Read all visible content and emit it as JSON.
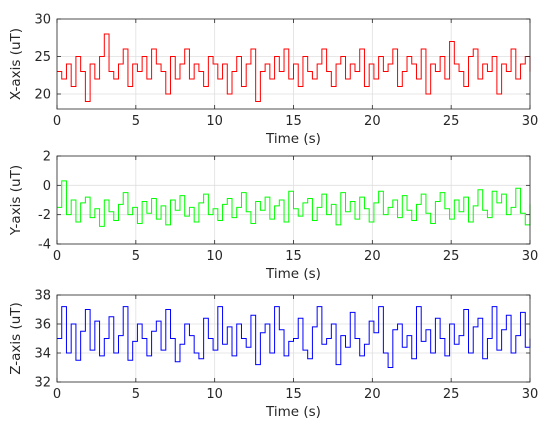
{
  "chart_data": [
    {
      "type": "line",
      "ylabel": "X-axis (uT)",
      "xlabel": "Time (s)",
      "xlim": [
        0,
        30
      ],
      "ylim": [
        18,
        30
      ],
      "xticks": [
        "0",
        "5",
        "10",
        "15",
        "20",
        "25",
        "30"
      ],
      "yticks": [
        "20",
        "25",
        "30"
      ],
      "grid": true,
      "color": "#ff0000",
      "series": [
        {
          "x": [
            0,
            0.3,
            0.6,
            0.9,
            1.2,
            1.5,
            1.8,
            2.1,
            2.4,
            2.7,
            3.0,
            3.3,
            3.6,
            3.9,
            4.2,
            4.5,
            4.8,
            5.1,
            5.4,
            5.7,
            6.0,
            6.3,
            6.6,
            6.9,
            7.2,
            7.5,
            7.8,
            8.1,
            8.4,
            8.7,
            9.0,
            9.3,
            9.6,
            9.9,
            10.2,
            10.5,
            10.8,
            11.1,
            11.4,
            11.7,
            12.0,
            12.3,
            12.6,
            12.9,
            13.2,
            13.5,
            13.8,
            14.1,
            14.4,
            14.7,
            15.0,
            15.3,
            15.6,
            15.9,
            16.2,
            16.5,
            16.8,
            17.1,
            17.4,
            17.7,
            18.0,
            18.3,
            18.6,
            18.9,
            19.2,
            19.5,
            19.8,
            20.1,
            20.4,
            20.7,
            21.0,
            21.3,
            21.6,
            21.9,
            22.2,
            22.5,
            22.8,
            23.1,
            23.4,
            23.7,
            24.0,
            24.3,
            24.6,
            24.9,
            25.2,
            25.5,
            25.8,
            26.1,
            26.4,
            26.7,
            27.0,
            27.3,
            27.6,
            27.9,
            28.2,
            28.5,
            28.8,
            29.1,
            29.4,
            29.7,
            30.0
          ],
          "y": [
            23,
            22,
            24,
            21,
            25,
            23,
            19,
            24,
            22,
            25,
            28,
            23,
            22,
            24,
            26,
            21,
            24,
            23,
            25,
            22,
            26,
            24,
            23,
            20,
            25,
            22,
            24,
            26,
            22,
            24,
            23,
            21,
            25,
            24,
            22,
            24,
            20,
            23,
            25,
            21,
            24,
            26,
            19,
            23,
            24,
            22,
            25,
            23,
            26,
            22,
            24,
            21,
            25,
            23,
            22,
            24,
            26,
            23,
            21,
            24,
            25,
            22,
            24,
            23,
            26,
            21,
            24,
            22,
            25,
            23,
            24,
            26,
            21,
            23,
            25,
            24,
            22,
            26,
            20,
            24,
            23,
            25,
            22,
            27,
            24,
            23,
            21,
            25,
            26,
            22,
            24,
            23,
            25,
            20,
            24,
            23,
            26,
            22,
            24,
            25,
            23
          ]
        }
      ]
    },
    {
      "type": "line",
      "ylabel": "Y-axis (uT)",
      "xlabel": "Time (s)",
      "xlim": [
        0,
        30
      ],
      "ylim": [
        -4,
        2
      ],
      "xticks": [
        "0",
        "5",
        "10",
        "15",
        "20",
        "25",
        "30"
      ],
      "yticks": [
        "-4",
        "-2",
        "0",
        "2"
      ],
      "grid": true,
      "color": "#00ff00",
      "series": [
        {
          "x": [
            0,
            0.3,
            0.6,
            0.9,
            1.2,
            1.5,
            1.8,
            2.1,
            2.4,
            2.7,
            3.0,
            3.3,
            3.6,
            3.9,
            4.2,
            4.5,
            4.8,
            5.1,
            5.4,
            5.7,
            6.0,
            6.3,
            6.6,
            6.9,
            7.2,
            7.5,
            7.8,
            8.1,
            8.4,
            8.7,
            9.0,
            9.3,
            9.6,
            9.9,
            10.2,
            10.5,
            10.8,
            11.1,
            11.4,
            11.7,
            12.0,
            12.3,
            12.6,
            12.9,
            13.2,
            13.5,
            13.8,
            14.1,
            14.4,
            14.7,
            15.0,
            15.3,
            15.6,
            15.9,
            16.2,
            16.5,
            16.8,
            17.1,
            17.4,
            17.7,
            18.0,
            18.3,
            18.6,
            18.9,
            19.2,
            19.5,
            19.8,
            20.1,
            20.4,
            20.7,
            21.0,
            21.3,
            21.6,
            21.9,
            22.2,
            22.5,
            22.8,
            23.1,
            23.4,
            23.7,
            24.0,
            24.3,
            24.6,
            24.9,
            25.2,
            25.5,
            25.8,
            26.1,
            26.4,
            26.7,
            27.0,
            27.3,
            27.6,
            27.9,
            28.2,
            28.5,
            28.8,
            29.1,
            29.4,
            29.7,
            30.0
          ],
          "y": [
            -1.5,
            0.3,
            -2,
            -1,
            -2.5,
            -1.2,
            -0.8,
            -2.2,
            -1.6,
            -2.8,
            -1,
            -1.8,
            -2.4,
            -1.3,
            -0.5,
            -2,
            -1.5,
            -2.6,
            -1.1,
            -1.9,
            -0.9,
            -2.3,
            -1.4,
            -2.7,
            -1,
            -1.7,
            -0.7,
            -2.1,
            -1.5,
            -2.5,
            -1.2,
            -0.6,
            -2,
            -1.6,
            -2.4,
            -1.3,
            -0.9,
            -2.2,
            -1.5,
            -0.5,
            -1.8,
            -2.6,
            -1.1,
            -1.7,
            -0.8,
            -2.3,
            -1.4,
            -1,
            -2.5,
            -0.4,
            -1.6,
            -2.1,
            -1.2,
            -0.9,
            -2.4,
            -1.5,
            -0.6,
            -2,
            -1.3,
            -2.7,
            -0.5,
            -1.8,
            -1.1,
            -2.3,
            -0.8,
            -1.6,
            -2.5,
            -1.2,
            -0.4,
            -2,
            -1.5,
            -1,
            -2.2,
            -0.7,
            -1.7,
            -2.4,
            -1.3,
            -0.6,
            -1.9,
            -2.6,
            -1.1,
            -0.5,
            -1.6,
            -2.3,
            -1,
            -1.8,
            -0.8,
            -2.5,
            -1.4,
            -0.3,
            -1.7,
            -2.2,
            -0.4,
            -1.2,
            -0.6,
            -2,
            -1.5,
            -0.2,
            -1.9,
            -2.7,
            -1.3
          ]
        }
      ]
    },
    {
      "type": "line",
      "ylabel": "Z-axis (uT)",
      "xlabel": "Time (s)",
      "xlim": [
        0,
        30
      ],
      "ylim": [
        32,
        38
      ],
      "xticks": [
        "0",
        "5",
        "10",
        "15",
        "20",
        "25",
        "30"
      ],
      "yticks": [
        "32",
        "34",
        "36",
        "38"
      ],
      "grid": true,
      "color": "#0000ff",
      "series": [
        {
          "x": [
            0,
            0.3,
            0.6,
            0.9,
            1.2,
            1.5,
            1.8,
            2.1,
            2.4,
            2.7,
            3.0,
            3.3,
            3.6,
            3.9,
            4.2,
            4.5,
            4.8,
            5.1,
            5.4,
            5.7,
            6.0,
            6.3,
            6.6,
            6.9,
            7.2,
            7.5,
            7.8,
            8.1,
            8.4,
            8.7,
            9.0,
            9.3,
            9.6,
            9.9,
            10.2,
            10.5,
            10.8,
            11.1,
            11.4,
            11.7,
            12.0,
            12.3,
            12.6,
            12.9,
            13.2,
            13.5,
            13.8,
            14.1,
            14.4,
            14.7,
            15.0,
            15.3,
            15.6,
            15.9,
            16.2,
            16.5,
            16.8,
            17.1,
            17.4,
            17.7,
            18.0,
            18.3,
            18.6,
            18.9,
            19.2,
            19.5,
            19.8,
            20.1,
            20.4,
            20.7,
            21.0,
            21.3,
            21.6,
            21.9,
            22.2,
            22.5,
            22.8,
            23.1,
            23.4,
            23.7,
            24.0,
            24.3,
            24.6,
            24.9,
            25.2,
            25.5,
            25.8,
            26.1,
            26.4,
            26.7,
            27.0,
            27.3,
            27.6,
            27.9,
            28.2,
            28.5,
            28.8,
            29.1,
            29.4,
            29.7,
            30.0
          ],
          "y": [
            35,
            37.2,
            34,
            36,
            33.5,
            35.5,
            37,
            34.2,
            36.2,
            33.8,
            35,
            36.5,
            34,
            35.2,
            37.2,
            33.5,
            34.8,
            36,
            35,
            33.8,
            35.5,
            36.2,
            34.2,
            37,
            35,
            33.4,
            34.6,
            36,
            35.2,
            34,
            33.6,
            36.4,
            35,
            34.2,
            37.2,
            34.6,
            35.8,
            33.8,
            36,
            35,
            34.4,
            36.6,
            33.2,
            35.4,
            36,
            34,
            37.2,
            35.6,
            33.8,
            34.8,
            35,
            36.4,
            34.2,
            33.6,
            35.8,
            37.2,
            34.6,
            35,
            36,
            33.2,
            35.2,
            34.4,
            36.8,
            35,
            33.8,
            34.6,
            36.2,
            35.4,
            37.2,
            34,
            33,
            35.6,
            36,
            34.4,
            35.2,
            33.6,
            37.2,
            34.8,
            35.6,
            34,
            36.4,
            35,
            33.8,
            36,
            34.6,
            35.2,
            37,
            34,
            35.8,
            36.4,
            33.6,
            35,
            37.2,
            34.2,
            35.6,
            36.6,
            34,
            35.2,
            36.8,
            34.4,
            35
          ]
        }
      ]
    }
  ]
}
